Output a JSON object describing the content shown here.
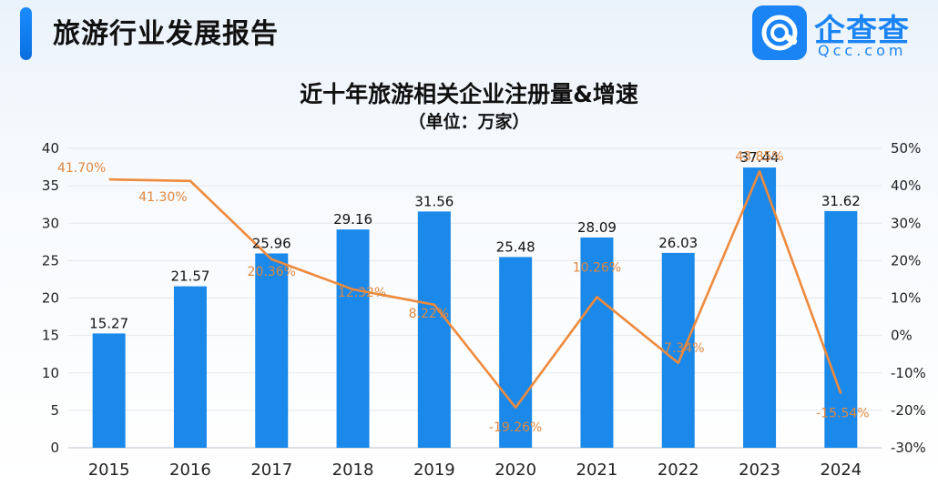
{
  "header": {
    "title": "旅游行业发展报告",
    "accent_color": "#1a8cff"
  },
  "logo": {
    "icon": "qcc-logo-icon",
    "name": "企查查",
    "domain": "Qcc.com",
    "color": "#1b84f5"
  },
  "chart_data": {
    "type": "bar",
    "title": "近十年旅游相关企业注册量&增速",
    "subtitle": "（单位：万家）",
    "categories": [
      "2015",
      "2016",
      "2017",
      "2018",
      "2019",
      "2020",
      "2021",
      "2022",
      "2023",
      "2024"
    ],
    "series": [
      {
        "type": "bar",
        "axis": "left",
        "color": "#1a89ea",
        "values": [
          15.27,
          21.57,
          25.96,
          29.16,
          31.56,
          25.48,
          28.09,
          26.03,
          37.44,
          31.62
        ],
        "labels": [
          "15.27",
          "21.57",
          "25.96",
          "29.16",
          "31.56",
          "25.48",
          "28.09",
          "26.03",
          "37.44",
          "31.62"
        ]
      },
      {
        "type": "line",
        "axis": "right",
        "color": "#ee8a3c",
        "values": [
          41.7,
          41.3,
          20.36,
          12.32,
          8.22,
          -19.26,
          10.26,
          -7.34,
          43.85,
          -15.54
        ],
        "labels": [
          "41.70%",
          "41.30%",
          "20.36%",
          "12.32%",
          "8.22%",
          "-19.26%",
          "10.26%",
          "-7.34%",
          "43.85%",
          "-15.54%"
        ]
      }
    ],
    "y_left": {
      "min": 0,
      "max": 40,
      "ticks": [
        "0",
        "5",
        "10",
        "15",
        "20",
        "25",
        "30",
        "35",
        "40"
      ]
    },
    "y_right": {
      "min": -30,
      "max": 50,
      "ticks": [
        "-30%",
        "-20%",
        "-10%",
        "0%",
        "10%",
        "20%",
        "30%",
        "40%",
        "50%"
      ]
    },
    "grid": true,
    "legend": "none"
  }
}
